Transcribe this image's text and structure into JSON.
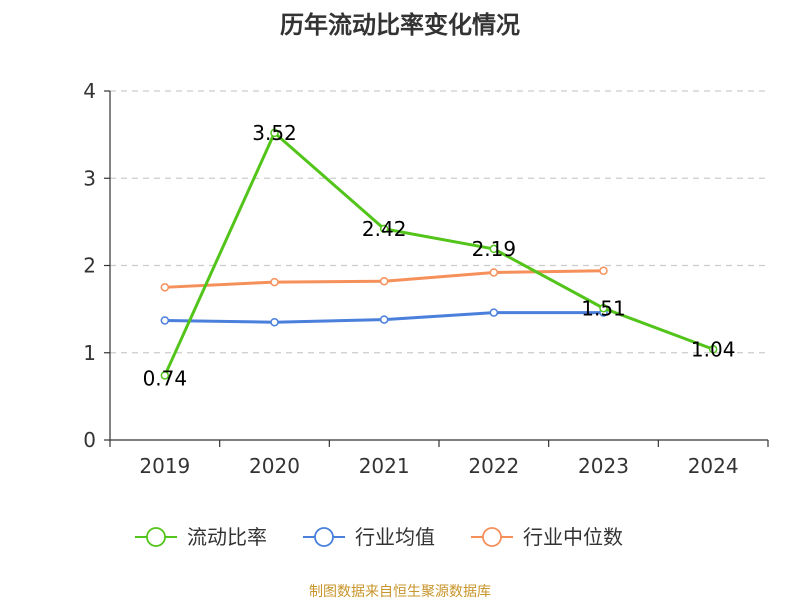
{
  "chart_data": {
    "type": "line",
    "title": "历年流动比率变化情况",
    "categories": [
      "2019",
      "2020",
      "2021",
      "2022",
      "2023",
      "2024"
    ],
    "ylim": [
      0,
      4
    ],
    "yticks": [
      "0",
      "1",
      "2",
      "3",
      "4"
    ],
    "grid": true,
    "legend_position": "bottom",
    "series": [
      {
        "name": "流动比率",
        "color": "#52c41a",
        "values": [
          0.74,
          3.52,
          2.42,
          2.19,
          1.51,
          1.04
        ],
        "labels": [
          "0.74",
          "3.52",
          "2.42",
          "2.19",
          "1.51",
          "1.04"
        ]
      },
      {
        "name": "行业均值",
        "color": "#4a7fdc",
        "values": [
          1.37,
          1.35,
          1.38,
          1.46,
          1.46,
          null
        ]
      },
      {
        "name": "行业中位数",
        "color": "#f5905a",
        "values": [
          1.75,
          1.81,
          1.82,
          1.92,
          1.94,
          null
        ]
      }
    ],
    "source": "制图数据来自恒生聚源数据库"
  }
}
